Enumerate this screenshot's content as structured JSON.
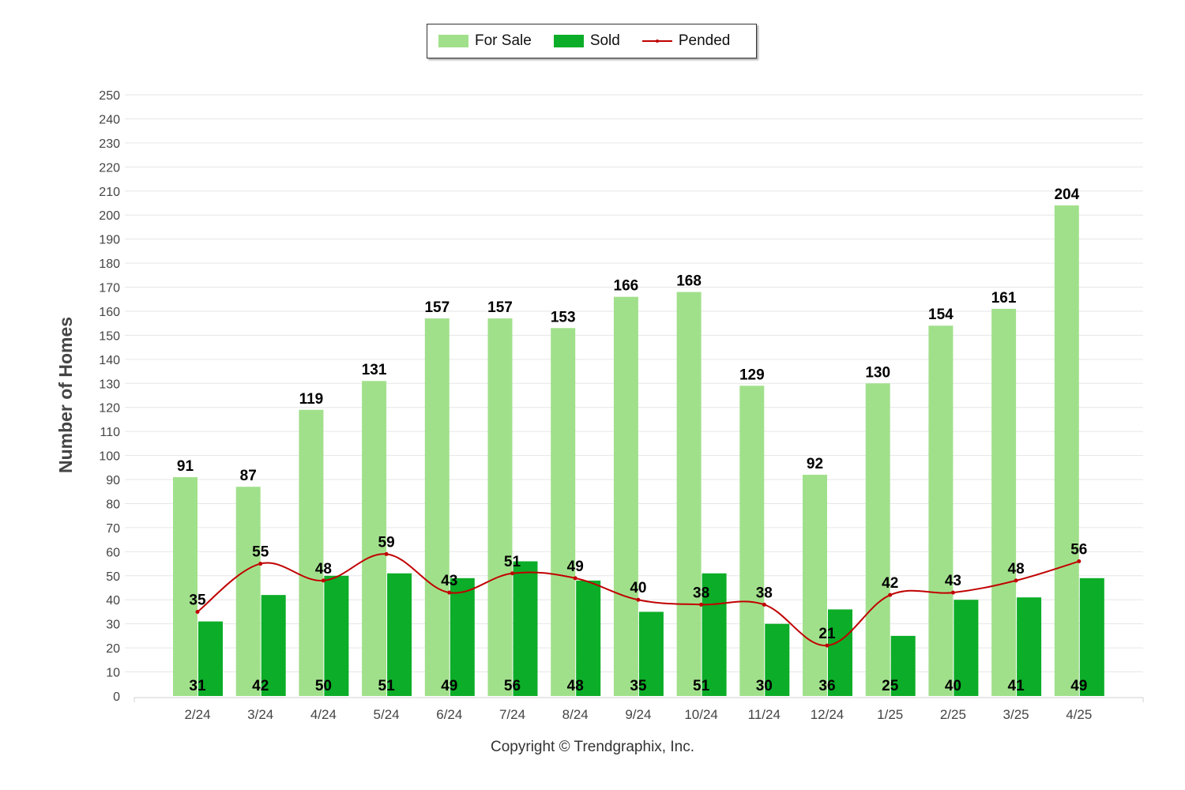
{
  "legend": {
    "for_sale": "For Sale",
    "sold": "Sold",
    "pended": "Pended"
  },
  "copyright": "Copyright © Trendgraphix, Inc.",
  "colors": {
    "for_sale": "#a1e08b",
    "sold": "#0cad28",
    "pended": "#c00000",
    "grid": "#e6e6e6",
    "axis_text": "#444444"
  },
  "chart_data": {
    "type": "bar",
    "title": "",
    "xlabel": "",
    "ylabel": "Number of Homes",
    "ylim": [
      0,
      250
    ],
    "ytick_step": 10,
    "grid": true,
    "legend_position": "top-center",
    "categories": [
      "2/24",
      "3/24",
      "4/24",
      "5/24",
      "6/24",
      "7/24",
      "8/24",
      "9/24",
      "10/24",
      "11/24",
      "12/24",
      "1/25",
      "2/25",
      "3/25",
      "4/25"
    ],
    "series": [
      {
        "name": "For Sale",
        "type": "bar",
        "values": [
          91,
          87,
          119,
          131,
          157,
          157,
          153,
          166,
          168,
          129,
          92,
          130,
          154,
          161,
          204
        ]
      },
      {
        "name": "Sold",
        "type": "bar",
        "values": [
          31,
          42,
          50,
          51,
          49,
          56,
          48,
          35,
          51,
          30,
          36,
          25,
          40,
          41,
          49
        ]
      },
      {
        "name": "Pended",
        "type": "line",
        "values": [
          35,
          55,
          48,
          59,
          43,
          51,
          49,
          40,
          38,
          38,
          21,
          42,
          43,
          48,
          56
        ]
      }
    ]
  }
}
